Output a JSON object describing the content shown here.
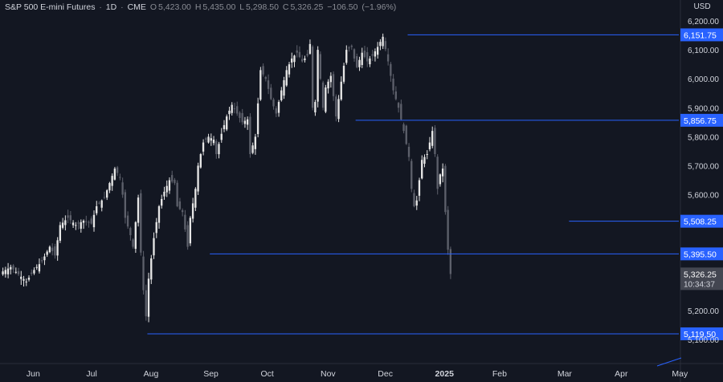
{
  "header": {
    "symbol": "S&P 500 E-mini Futures",
    "interval": "1D",
    "exchange": "CME",
    "o_label": "O",
    "o_value": "5,423.00",
    "h_label": "H",
    "h_value": "5,435.00",
    "l_label": "L",
    "l_value": "5,298.50",
    "c_label": "C",
    "c_value": "5,326.25",
    "change": "−106.50",
    "change_pct": "(−1.96%)"
  },
  "currency": "USD",
  "colors": {
    "background": "#131722",
    "up_candle": "#e6e6e6",
    "down_candle": "#5d606b",
    "level_line": "#2962ff",
    "level_label_bg": "#2962ff",
    "last_price_bg": "#434651",
    "axis_text": "#d1d4dc"
  },
  "chart_data": {
    "type": "candlestick",
    "y_axis_ticks": [
      "6,200.00",
      "6,100.00",
      "6,000.00",
      "5,900.00",
      "5,800.00",
      "5,700.00",
      "5,600.00",
      "5,200.00",
      "5,100.00"
    ],
    "y_range": [
      5050,
      6230
    ],
    "x_axis_ticks": [
      "Jun",
      "Jul",
      "Aug",
      "Sep",
      "Oct",
      "Nov",
      "Dec",
      "2025",
      "Feb",
      "Mar",
      "Apr",
      "May"
    ],
    "levels": [
      {
        "value": 6151.75,
        "label": "6,151.75"
      },
      {
        "value": 5856.75,
        "label": "5,856.75"
      },
      {
        "value": 5508.25,
        "label": "5,508.25"
      },
      {
        "value": 5395.5,
        "label": "5,395.50"
      },
      {
        "value": 5119.5,
        "label": "5,119.50"
      }
    ],
    "last_price": {
      "value": 5326.25,
      "label": "5,326.25",
      "countdown": "10:34:37"
    },
    "close_path": [
      [
        0,
        5335
      ],
      [
        3,
        5350
      ],
      [
        6,
        5325
      ],
      [
        9,
        5300
      ],
      [
        12,
        5340
      ],
      [
        15,
        5370
      ],
      [
        18,
        5420
      ],
      [
        20,
        5390
      ],
      [
        22,
        5495
      ],
      [
        25,
        5520
      ],
      [
        28,
        5495
      ],
      [
        31,
        5510
      ],
      [
        34,
        5500
      ],
      [
        36,
        5560
      ],
      [
        39,
        5590
      ],
      [
        41,
        5640
      ],
      [
        43,
        5690
      ],
      [
        45,
        5660
      ],
      [
        46,
        5600
      ],
      [
        47,
        5520
      ],
      [
        49,
        5460
      ],
      [
        50,
        5420
      ],
      [
        52,
        5590
      ],
      [
        53,
        5400
      ],
      [
        54,
        5270
      ],
      [
        55,
        5180
      ],
      [
        56,
        5310
      ],
      [
        58,
        5450
      ],
      [
        60,
        5560
      ],
      [
        62,
        5610
      ],
      [
        64,
        5650
      ],
      [
        66,
        5640
      ],
      [
        67,
        5560
      ],
      [
        69,
        5540
      ],
      [
        71,
        5420
      ],
      [
        72,
        5520
      ],
      [
        74,
        5620
      ],
      [
        75,
        5700
      ],
      [
        77,
        5780
      ],
      [
        79,
        5800
      ],
      [
        81,
        5790
      ],
      [
        82,
        5740
      ],
      [
        84,
        5810
      ],
      [
        86,
        5870
      ],
      [
        88,
        5910
      ],
      [
        90,
        5880
      ],
      [
        92,
        5850
      ],
      [
        94,
        5860
      ],
      [
        95,
        5740
      ],
      [
        97,
        5800
      ],
      [
        99,
        6030
      ],
      [
        101,
        6000
      ],
      [
        103,
        5930
      ],
      [
        105,
        5880
      ],
      [
        107,
        5960
      ],
      [
        109,
        6030
      ],
      [
        111,
        6070
      ],
      [
        113,
        6090
      ],
      [
        115,
        6060
      ],
      [
        117,
        6080
      ],
      [
        118,
        6120
      ],
      [
        119,
        5900
      ],
      [
        120,
        5920
      ],
      [
        121,
        6100
      ],
      [
        123,
        5900
      ],
      [
        124,
        5970
      ],
      [
        126,
        6010
      ],
      [
        128,
        5870
      ],
      [
        130,
        5990
      ],
      [
        132,
        6100
      ],
      [
        134,
        6110
      ],
      [
        135,
        6070
      ],
      [
        136,
        6040
      ],
      [
        138,
        6090
      ],
      [
        140,
        6060
      ],
      [
        142,
        6080
      ],
      [
        144,
        6110
      ],
      [
        146,
        6145
      ],
      [
        148,
        6060
      ],
      [
        150,
        5960
      ],
      [
        152,
        5900
      ],
      [
        154,
        5820
      ],
      [
        156,
        5730
      ],
      [
        157,
        5620
      ],
      [
        158,
        5560
      ],
      [
        159,
        5580
      ],
      [
        161,
        5720
      ],
      [
        163,
        5740
      ],
      [
        165,
        5820
      ],
      [
        166,
        5740
      ],
      [
        167,
        5620
      ],
      [
        168,
        5670
      ],
      [
        169,
        5690
      ],
      [
        170,
        5540
      ],
      [
        171,
        5410
      ],
      [
        172,
        5326
      ]
    ],
    "x_ticks_index": [
      12,
      35,
      57,
      80,
      102,
      125,
      147,
      169,
      191,
      216,
      238,
      260
    ]
  }
}
